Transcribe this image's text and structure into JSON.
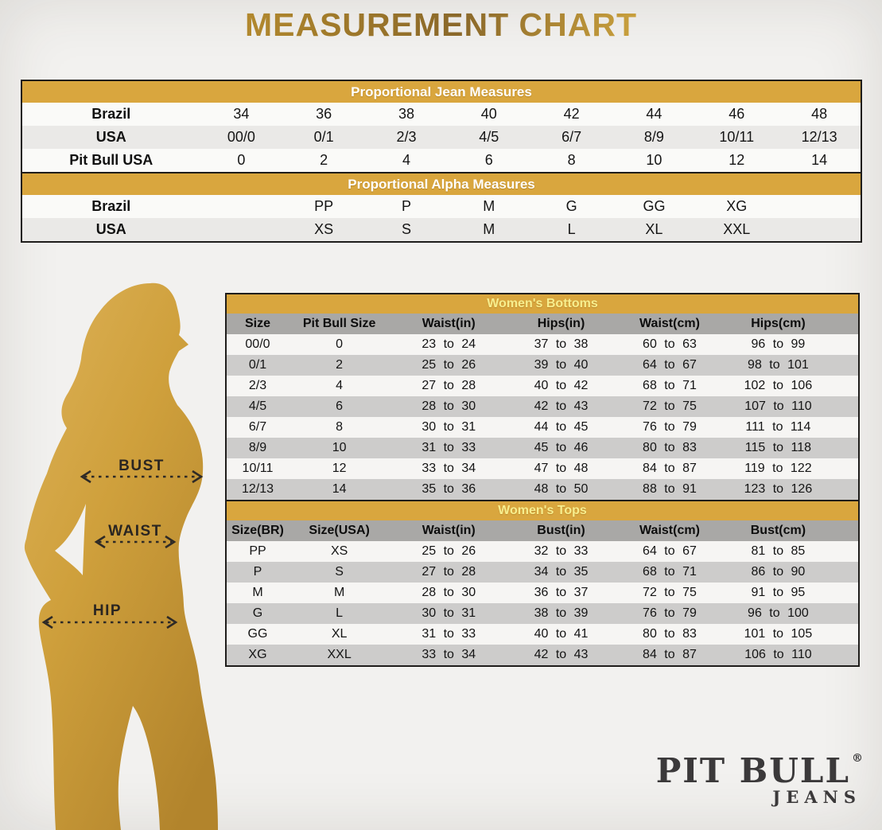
{
  "title": "MEASUREMENT CHART",
  "jean_table": {
    "header": "Proportional Jean Measures",
    "rows": [
      {
        "label": "Brazil",
        "values": [
          "34",
          "36",
          "38",
          "40",
          "42",
          "44",
          "46",
          "48"
        ]
      },
      {
        "label": "USA",
        "values": [
          "00/0",
          "0/1",
          "2/3",
          "4/5",
          "6/7",
          "8/9",
          "10/11",
          "12/13"
        ]
      },
      {
        "label": "Pit Bull USA",
        "values": [
          "0",
          "2",
          "4",
          "6",
          "8",
          "10",
          "12",
          "14"
        ]
      }
    ]
  },
  "alpha_table": {
    "header": "Proportional Alpha Measures",
    "rows": [
      {
        "label": "Brazil",
        "values": [
          "",
          "PP",
          "P",
          "M",
          "G",
          "GG",
          "XG",
          ""
        ]
      },
      {
        "label": "USA",
        "values": [
          "",
          "XS",
          "S",
          "M",
          "L",
          "XL",
          "XXL",
          ""
        ]
      }
    ]
  },
  "bottoms_table": {
    "header": "Women's Bottoms",
    "columns": [
      "Size",
      "Pit Bull Size",
      "Waist(in)",
      "Hips(in)",
      "Waist(cm)",
      "Hips(cm)"
    ],
    "rows": [
      [
        "00/0",
        "0",
        "23 to 24",
        "37 to 38",
        "60 to 63",
        "96 to 99"
      ],
      [
        "0/1",
        "2",
        "25 to 26",
        "39 to 40",
        "64 to 67",
        "98 to 101"
      ],
      [
        "2/3",
        "4",
        "27 to 28",
        "40 to 42",
        "68 to 71",
        "102 to 106"
      ],
      [
        "4/5",
        "6",
        "28 to 30",
        "42 to 43",
        "72 to 75",
        "107 to 110"
      ],
      [
        "6/7",
        "8",
        "30 to 31",
        "44 to 45",
        "76 to 79",
        "111 to 114"
      ],
      [
        "8/9",
        "10",
        "31 to 33",
        "45 to 46",
        "80 to 83",
        "115 to 118"
      ],
      [
        "10/11",
        "12",
        "33 to 34",
        "47 to 48",
        "84 to 87",
        "119 to 122"
      ],
      [
        "12/13",
        "14",
        "35 to 36",
        "48 to 50",
        "88 to 91",
        "123 to 126"
      ]
    ]
  },
  "tops_table": {
    "header": "Women's Tops",
    "columns": [
      "Size(BR)",
      "Size(USA)",
      "Waist(in)",
      "Bust(in)",
      "Waist(cm)",
      "Bust(cm)"
    ],
    "rows": [
      [
        "PP",
        "XS",
        "25 to 26",
        "32 to 33",
        "64 to 67",
        "81 to 85"
      ],
      [
        "P",
        "S",
        "27 to 28",
        "34 to 35",
        "68 to 71",
        "86 to 90"
      ],
      [
        "M",
        "M",
        "28 to 30",
        "36 to 37",
        "72 to 75",
        "91 to 95"
      ],
      [
        "G",
        "L",
        "30 to 31",
        "38 to 39",
        "76 to 79",
        "96 to 100"
      ],
      [
        "GG",
        "XL",
        "31 to 33",
        "40 to 41",
        "80 to 83",
        "101 to 105"
      ],
      [
        "XG",
        "XXL",
        "33 to 34",
        "42 to 43",
        "84 to 87",
        "106 to 110"
      ]
    ]
  },
  "figure": {
    "labels": {
      "bust": "BUST",
      "waist": "WAIST",
      "hip": "HIP"
    }
  },
  "logo": {
    "brand": "PIT BULL",
    "registered": "®",
    "sub": "JEANS"
  },
  "colors": {
    "gold_accent": "#d9a63e",
    "header_text_white": "#ffffff",
    "header_text_yellow": "#f7ee8e",
    "stripe_gray": "#cdcccb",
    "column_header_gray": "#a9a8a6",
    "silhouette_gold": "#c79a37",
    "logo_charcoal": "#3b393a",
    "background": "#f2f1ef"
  }
}
